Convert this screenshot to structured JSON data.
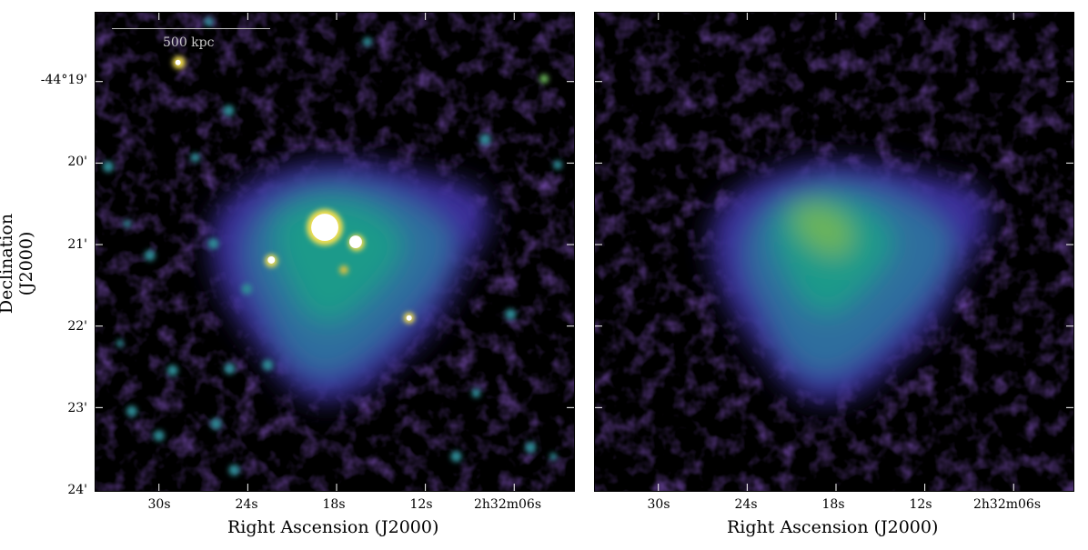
{
  "figure": {
    "y_axis_title": "Declination (J2000)",
    "x_axis_title": "Right Ascension (J2000)",
    "y_ticks": [
      "-44°19'",
      "20'",
      "21'",
      "22'",
      "23'",
      "24'"
    ],
    "x_ticks": [
      "30s",
      "24s",
      "18s",
      "12s",
      "2h32m06s"
    ],
    "scalebar_label": "500 kpc",
    "colormap": [
      "#000000",
      "#2a0a5e",
      "#3b2f9a",
      "#2f6e9e",
      "#1f9a8a",
      "#6ab45a",
      "#f5e050",
      "#ffffff"
    ]
  },
  "panels": [
    {
      "name": "left",
      "description_visible": "with point sources"
    },
    {
      "name": "right",
      "description_visible": "point sources removed"
    }
  ]
}
